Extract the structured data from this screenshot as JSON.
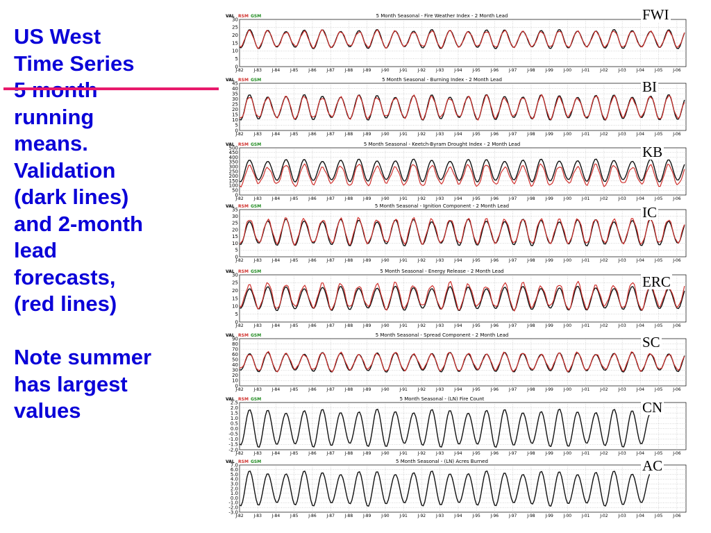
{
  "slide": {
    "text_lines": [
      "US West",
      "Time Series",
      "5 month",
      "running",
      "means.",
      "Validation",
      "(dark lines)",
      "and 2-month",
      "lead",
      "forecasts,",
      "(red lines)",
      "",
      "Note summer",
      "has largest",
      "values"
    ],
    "colors": {
      "text": "#0a00d8",
      "divider": "#e8196b",
      "validation": "#111111",
      "forecast": "#d0312d",
      "gsm_legend": "#1f8a1f"
    }
  },
  "chart_data": [
    {
      "type": "line",
      "label": "FWI",
      "title": "5 Month Seasonal - Fire Weather Index - 2 Month Lead",
      "legend": [
        "VAL",
        "RSM",
        "GSM"
      ],
      "yticks": [
        "30",
        "25",
        "20",
        "15",
        "10",
        "5",
        "0"
      ],
      "ylim": [
        0,
        30
      ],
      "xticks": [
        "J-82",
        "J-83",
        "J-84",
        "J-85",
        "J-86",
        "J-87",
        "J-88",
        "J-89",
        "J-90",
        "J-91",
        "J-92",
        "J-93",
        "J-94",
        "J-95",
        "J-96",
        "J-97",
        "J-98",
        "J-99",
        "J-00",
        "J-01",
        "J-02",
        "J-03",
        "J-04",
        "J-05",
        "J-06"
      ],
      "grid": true,
      "series": [
        {
          "name": "VAL",
          "mean": 17.5,
          "amp": 5.5,
          "start_year": 1982,
          "end_year": 2006.4
        },
        {
          "name": "RSM",
          "mean": 17.5,
          "amp": 5.0,
          "start_year": 1982,
          "end_year": 2006.4
        }
      ]
    },
    {
      "type": "line",
      "label": "BI",
      "title": "5 Month Seasonal - Burning Index - 2 Month Lead",
      "legend": [
        "VAL",
        "RSM",
        "GSM"
      ],
      "yticks": [
        "45",
        "40",
        "35",
        "30",
        "25",
        "20",
        "15",
        "10",
        "5",
        "0"
      ],
      "ylim": [
        0,
        45
      ],
      "xticks": [
        "J-82",
        "J-83",
        "J-84",
        "J-85",
        "J-86",
        "J-87",
        "J-88",
        "J-89",
        "J-90",
        "J-91",
        "J-92",
        "J-93",
        "J-94",
        "J-95",
        "J-96",
        "J-97",
        "J-98",
        "J-99",
        "J-00",
        "J-01",
        "J-02",
        "J-03",
        "J-04",
        "J-05",
        "J-06"
      ],
      "grid": true,
      "series": [
        {
          "name": "VAL",
          "mean": 22,
          "amp": 11,
          "start_year": 1982,
          "end_year": 2006.4
        },
        {
          "name": "RSM",
          "mean": 22,
          "amp": 10,
          "start_year": 1982,
          "end_year": 2006.4
        }
      ]
    },
    {
      "type": "line",
      "label": "KB",
      "title": "5 Month Seasonal - Keetch-Byram Drought Index - 2 Month Lead",
      "legend": [
        "VAL",
        "RSM",
        "GSM"
      ],
      "yticks": [
        "500",
        "450",
        "400",
        "350",
        "300",
        "250",
        "200",
        "150",
        "100",
        "50",
        "0"
      ],
      "ylim": [
        0,
        500
      ],
      "xticks": [
        "J-82",
        "J-83",
        "J-84",
        "J-85",
        "J-86",
        "J-87",
        "J-88",
        "J-89",
        "J-90",
        "J-91",
        "J-92",
        "J-93",
        "J-94",
        "J-95",
        "J-96",
        "J-97",
        "J-98",
        "J-99",
        "J-00",
        "J-01",
        "J-02",
        "J-03",
        "J-04",
        "J-05",
        "J-06"
      ],
      "grid": true,
      "series": [
        {
          "name": "VAL",
          "mean": 260,
          "amp": 110,
          "start_year": 1982,
          "end_year": 2006.4
        },
        {
          "name": "RSM",
          "mean": 210,
          "amp": 100,
          "start_year": 1982,
          "end_year": 2006.4
        }
      ]
    },
    {
      "type": "line",
      "label": "IC",
      "title": "5 Month Seasonal  - Ignition Component - 2 Month Lead",
      "legend": [
        "VAL",
        "RSM",
        "GSM"
      ],
      "yticks": [
        "35",
        "30",
        "25",
        "20",
        "15",
        "10",
        "5",
        "0"
      ],
      "ylim": [
        0,
        35
      ],
      "xticks": [
        "J-82",
        "J-83",
        "J-84",
        "J-85",
        "J-86",
        "J-87",
        "J-88",
        "J-89",
        "J-90",
        "J-91",
        "J-92",
        "J-93",
        "J-94",
        "J-95",
        "J-96",
        "J-97",
        "J-98",
        "J-99",
        "J-00",
        "J-01",
        "J-02",
        "J-03",
        "J-04",
        "J-05",
        "J-06"
      ],
      "grid": true,
      "series": [
        {
          "name": "VAL",
          "mean": 18,
          "amp": 9,
          "start_year": 1982,
          "end_year": 2006.4
        },
        {
          "name": "RSM",
          "mean": 19,
          "amp": 9,
          "start_year": 1982,
          "end_year": 2006.4
        }
      ]
    },
    {
      "type": "line",
      "label": "ERC",
      "title": "5 Month Seasonal - Energy Release - 2 Month Lead",
      "legend": [
        "VAL",
        "RSM",
        "GSM"
      ],
      "yticks": [
        "30",
        "25",
        "20",
        "15",
        "10",
        "5",
        "0"
      ],
      "ylim": [
        0,
        30
      ],
      "xticks": [
        "J-82",
        "J-83",
        "J-84",
        "J-85",
        "J-86",
        "J-87",
        "J-88",
        "J-89",
        "J-90",
        "J-91",
        "J-92",
        "J-93",
        "J-94",
        "J-95",
        "J-96",
        "J-97",
        "J-98",
        "J-99",
        "J-00",
        "J-01",
        "J-02",
        "J-03",
        "J-04",
        "J-05",
        "J-06"
      ],
      "grid": true,
      "series": [
        {
          "name": "VAL",
          "mean": 15,
          "amp": 7,
          "start_year": 1982,
          "end_year": 2006.4
        },
        {
          "name": "RSM",
          "mean": 16.5,
          "amp": 7.5,
          "start_year": 1982,
          "end_year": 2006.4
        }
      ]
    },
    {
      "type": "line",
      "label": "SC",
      "title": "5 Month Seasonal - Spread Component - 2 Month Lead",
      "legend": [
        "VAL",
        "RSM",
        "GSM"
      ],
      "yticks": [
        "90",
        "80",
        "70",
        "60",
        "50",
        "40",
        "30",
        "20",
        "10",
        "0"
      ],
      "ylim": [
        0,
        90
      ],
      "xticks": [
        "J-82",
        "J-83",
        "J-84",
        "J-85",
        "J-86",
        "J-87",
        "J-88",
        "J-89",
        "J-90",
        "J-91",
        "J-92",
        "J-93",
        "J-94",
        "J-95",
        "J-96",
        "J-97",
        "J-98",
        "J-99",
        "J-00",
        "J-01",
        "J-02",
        "J-03",
        "J-04",
        "J-05",
        "J-06"
      ],
      "grid": true,
      "series": [
        {
          "name": "VAL",
          "mean": 45,
          "amp": 17,
          "start_year": 1982,
          "end_year": 2006.4
        },
        {
          "name": "RSM",
          "mean": 46,
          "amp": 16,
          "start_year": 1982,
          "end_year": 2006.4
        }
      ]
    },
    {
      "type": "line",
      "label": "CN",
      "title": "5 Month Seasonal - (LN) Fire Count",
      "legend": [
        "VAL",
        "RSM",
        "GSM"
      ],
      "yticks": [
        "2.5",
        "2.0",
        "1.5",
        "1.0",
        "0.5",
        "0.0",
        "-0.5",
        "-1.0",
        "-1.5",
        "-2.0"
      ],
      "ylim": [
        -2.0,
        2.5
      ],
      "xticks": [
        "J-82",
        "J-83",
        "J-84",
        "J-85",
        "J-86",
        "J-87",
        "J-88",
        "J-89",
        "J-90",
        "J-91",
        "J-92",
        "J-93",
        "J-94",
        "J-95",
        "J-96",
        "J-97",
        "J-98",
        "J-99",
        "J-00",
        "J-01",
        "J-02",
        "J-03",
        "J-04",
        "J-05",
        "J-06"
      ],
      "grid": true,
      "series": [
        {
          "name": "VAL",
          "mean": 0.05,
          "amp": 1.65,
          "start_year": 1982,
          "end_year": 2004.5
        }
      ]
    },
    {
      "type": "line",
      "label": "AC",
      "title": "5 Month Seasonal - (LN) Acres Burned",
      "legend": [
        "VAL",
        "RSM",
        "GSM"
      ],
      "yticks": [
        "7.0",
        "6.0",
        "5.0",
        "4.0",
        "3.0",
        "2.0",
        "1.0",
        "0.0",
        "-1.0",
        "-2.0",
        "-3.0"
      ],
      "ylim": [
        -3.0,
        7.0
      ],
      "xticks": [
        "J-82",
        "J-83",
        "J-84",
        "J-85",
        "J-86",
        "J-87",
        "J-88",
        "J-89",
        "J-90",
        "J-91",
        "J-92",
        "J-93",
        "J-94",
        "J-95",
        "J-96",
        "J-97",
        "J-98",
        "J-99",
        "J-00",
        "J-01",
        "J-02",
        "J-03",
        "J-04",
        "J-05",
        "J-06"
      ],
      "grid": true,
      "series": [
        {
          "name": "VAL",
          "mean": 2.0,
          "amp": 3.4,
          "start_year": 1982,
          "end_year": 2004.5
        }
      ]
    }
  ]
}
